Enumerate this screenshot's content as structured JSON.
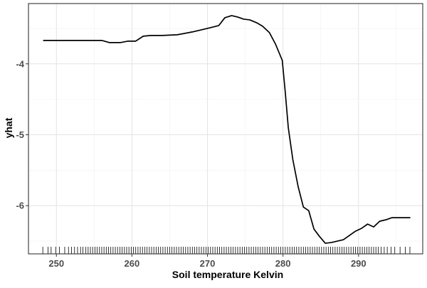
{
  "chart_data": {
    "type": "line",
    "title": "",
    "xlabel": "Soil temperature Kelvin",
    "ylabel": "yhat",
    "xlim": [
      246.3,
      298.5
    ],
    "ylim": [
      -6.68,
      -3.15
    ],
    "x_ticks": [
      250,
      260,
      270,
      280,
      290
    ],
    "x_tick_labels": [
      "250",
      "260",
      "270",
      "280",
      "290"
    ],
    "y_ticks": [
      -4,
      -5,
      -6
    ],
    "y_tick_labels": [
      "-4",
      "-5",
      "-6"
    ],
    "grid": true,
    "legend": "none",
    "series": [
      {
        "x": [
          248.3,
          252.0,
          256.0,
          257.0,
          258.5,
          259.5,
          260.5,
          261.5,
          262.5,
          264.0,
          266.0,
          268.0,
          270.0,
          271.5,
          272.3,
          273.2,
          274.0,
          274.8,
          275.6,
          276.5,
          277.3,
          278.2,
          279.0,
          279.9,
          280.3,
          280.7,
          281.3,
          282.0,
          282.7,
          283.4,
          284.1,
          284.8,
          285.6,
          286.4,
          287.2,
          288.0,
          288.8,
          289.6,
          290.4,
          291.2,
          292.0,
          292.8,
          293.6,
          294.4,
          295.2,
          296.0,
          296.8
        ],
        "y": [
          -3.67,
          -3.67,
          -3.67,
          -3.7,
          -3.7,
          -3.68,
          -3.68,
          -3.61,
          -3.6,
          -3.6,
          -3.59,
          -3.55,
          -3.5,
          -3.46,
          -3.35,
          -3.32,
          -3.34,
          -3.37,
          -3.38,
          -3.42,
          -3.47,
          -3.56,
          -3.72,
          -3.95,
          -4.4,
          -4.9,
          -5.35,
          -5.73,
          -6.02,
          -6.07,
          -6.33,
          -6.43,
          -6.53,
          -6.52,
          -6.5,
          -6.48,
          -6.42,
          -6.36,
          -6.32,
          -6.26,
          -6.3,
          -6.22,
          -6.2,
          -6.17,
          -6.17,
          -6.17,
          -6.17
        ]
      }
    ],
    "rug_x": [
      248.2,
      248.9,
      249.3,
      249.9,
      250.4,
      251.1,
      251.6,
      252.0,
      252.4,
      252.8,
      253.2,
      253.5,
      253.9,
      254.2,
      254.5,
      254.8,
      255.1,
      255.4,
      255.7,
      256.0,
      256.3,
      256.6,
      256.9,
      257.2,
      257.5,
      257.8,
      258.1,
      258.4,
      258.7,
      259.0,
      259.3,
      259.6,
      259.9,
      260.2,
      260.5,
      260.8,
      261.1,
      261.4,
      261.7,
      262.0,
      262.3,
      262.6,
      262.9,
      263.2,
      263.5,
      263.8,
      264.1,
      264.4,
      264.7,
      265.0,
      265.3,
      265.6,
      265.9,
      266.2,
      266.5,
      266.8,
      267.1,
      267.4,
      267.7,
      268.0,
      268.3,
      268.6,
      268.9,
      269.2,
      269.5,
      269.8,
      270.1,
      270.4,
      270.7,
      271.0,
      271.3,
      271.6,
      271.9,
      272.2,
      272.5,
      272.8,
      273.1,
      273.4,
      273.7,
      274.0,
      274.3,
      274.6,
      274.9,
      275.2,
      275.5,
      275.8,
      276.1,
      276.4,
      276.7,
      277.0,
      277.3,
      277.6,
      277.9,
      278.2,
      278.5,
      278.8,
      279.1,
      279.4,
      279.7,
      280.0,
      280.3,
      280.6,
      280.9,
      281.2,
      281.5,
      281.8,
      282.1,
      282.4,
      282.7,
      283.0,
      283.3,
      283.6,
      283.9,
      284.2,
      284.5,
      284.8,
      285.1,
      285.4,
      285.7,
      286.0,
      286.3,
      286.6,
      286.9,
      287.2,
      287.5,
      287.8,
      288.1,
      288.4,
      288.7,
      289.0,
      289.3,
      289.6,
      289.9,
      290.2,
      290.5,
      290.8,
      291.1,
      291.4,
      291.7,
      292.0,
      292.3,
      292.6,
      293.0,
      293.4,
      293.8,
      294.3,
      294.8,
      295.5,
      296.2,
      296.8
    ]
  }
}
